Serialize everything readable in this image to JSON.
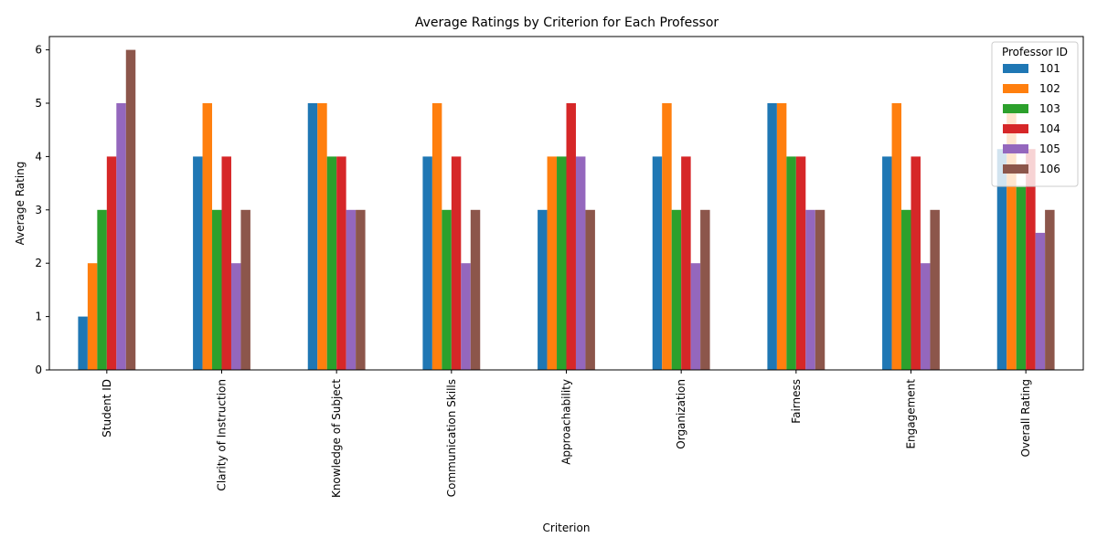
{
  "chart_data": {
    "type": "bar",
    "title": "Average Ratings by Criterion for Each Professor",
    "xlabel": "Criterion",
    "ylabel": "Average Rating",
    "ylim": [
      0,
      6.25
    ],
    "yticks": [
      0,
      1,
      2,
      3,
      4,
      5,
      6
    ],
    "grid": false,
    "legend": {
      "title": "Professor ID",
      "placement": "top-right"
    },
    "categories": [
      "Student ID",
      "Clarity of Instruction",
      "Knowledge of Subject",
      "Communication Skills",
      "Approachability",
      "Organization",
      "Fairness",
      "Engagement",
      "Overall Rating"
    ],
    "series": [
      {
        "name": "101",
        "color": "#1f77b4",
        "values": [
          1,
          4,
          5,
          4,
          3,
          4,
          5,
          4,
          4.14
        ]
      },
      {
        "name": "102",
        "color": "#ff7f0e",
        "values": [
          2,
          5,
          5,
          5,
          4,
          5,
          5,
          5,
          4.86
        ]
      },
      {
        "name": "103",
        "color": "#2ca02c",
        "values": [
          3,
          3,
          4,
          3,
          4,
          3,
          4,
          3,
          3.43
        ]
      },
      {
        "name": "104",
        "color": "#d62728",
        "values": [
          4,
          4,
          4,
          4,
          5,
          4,
          4,
          4,
          4.14
        ]
      },
      {
        "name": "105",
        "color": "#9467bd",
        "values": [
          5,
          2,
          3,
          2,
          4,
          2,
          3,
          2,
          2.57
        ]
      },
      {
        "name": "106",
        "color": "#8c564b",
        "values": [
          6,
          3,
          3,
          3,
          3,
          3,
          3,
          3,
          3
        ]
      }
    ]
  }
}
